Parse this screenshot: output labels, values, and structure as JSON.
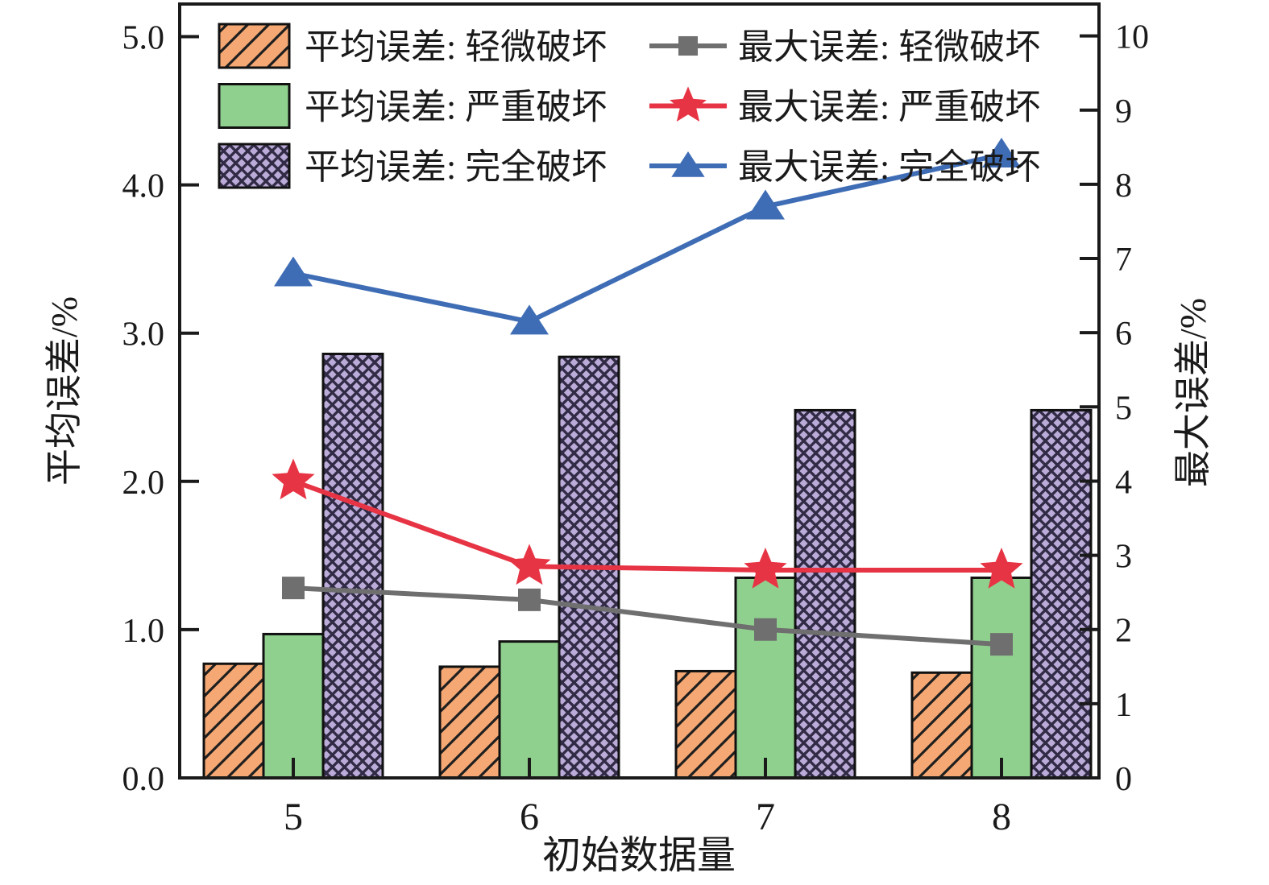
{
  "figure": {
    "background": "#FFFFFF",
    "axis_color": "#1A1A1A",
    "grid": "off"
  },
  "chart_data": {
    "type": "bar",
    "combo_note": "grouped bars on left axis plus lines with markers on right axis",
    "categories": [
      "5",
      "6",
      "7",
      "8"
    ],
    "xlabel": "初始数据量",
    "left_axis": {
      "label": "平均误差/%",
      "min": 0,
      "max": 5.22,
      "ticks": [
        0,
        1,
        2,
        3,
        4,
        5
      ],
      "tick_labels": [
        "0.0",
        "1.0",
        "2.0",
        "3.0",
        "4.0",
        "5.0"
      ]
    },
    "right_axis": {
      "label": "最大误差/%",
      "min": 0,
      "max": 10.43,
      "ticks": [
        0,
        1,
        2,
        3,
        4,
        5,
        6,
        7,
        8,
        9,
        10
      ],
      "tick_labels": [
        "0",
        "1",
        "2",
        "3",
        "4",
        "5",
        "6",
        "7",
        "8",
        "9",
        "10"
      ]
    },
    "bar_series": [
      {
        "key": "avg-slight-damage",
        "name": "平均误差: 轻微破坏",
        "axis": "left",
        "color": "#F5A873",
        "hatch": "diagonal",
        "values": [
          0.77,
          0.75,
          0.72,
          0.71
        ]
      },
      {
        "key": "avg-severe-damage",
        "name": "平均误差: 严重破坏",
        "axis": "left",
        "color": "#90D08E",
        "hatch": "none",
        "values": [
          0.97,
          0.92,
          1.35,
          1.35
        ]
      },
      {
        "key": "avg-complete-damage",
        "name": "平均误差: 完全破坏",
        "axis": "left",
        "color": "#BBABD8",
        "hatch": "crosshatch",
        "values": [
          2.86,
          2.84,
          2.48,
          2.48
        ]
      }
    ],
    "line_series": [
      {
        "key": "max-slight-damage",
        "name": "最大误差: 轻微破坏",
        "axis": "right",
        "color": "#6F6F6F",
        "marker": "square",
        "values": [
          2.56,
          2.4,
          2.0,
          1.8
        ]
      },
      {
        "key": "max-severe-damage",
        "name": "最大误差: 严重破坏",
        "axis": "right",
        "color": "#E73444",
        "marker": "star",
        "values": [
          4.0,
          2.85,
          2.8,
          2.8
        ]
      },
      {
        "key": "max-complete-damage",
        "name": "最大误差: 完全破坏",
        "axis": "right",
        "color": "#3F6DB5",
        "marker": "triangle",
        "values": [
          6.8,
          6.15,
          7.7,
          8.4
        ]
      }
    ],
    "legend": {
      "position": "top-inside",
      "columns": 2
    }
  }
}
